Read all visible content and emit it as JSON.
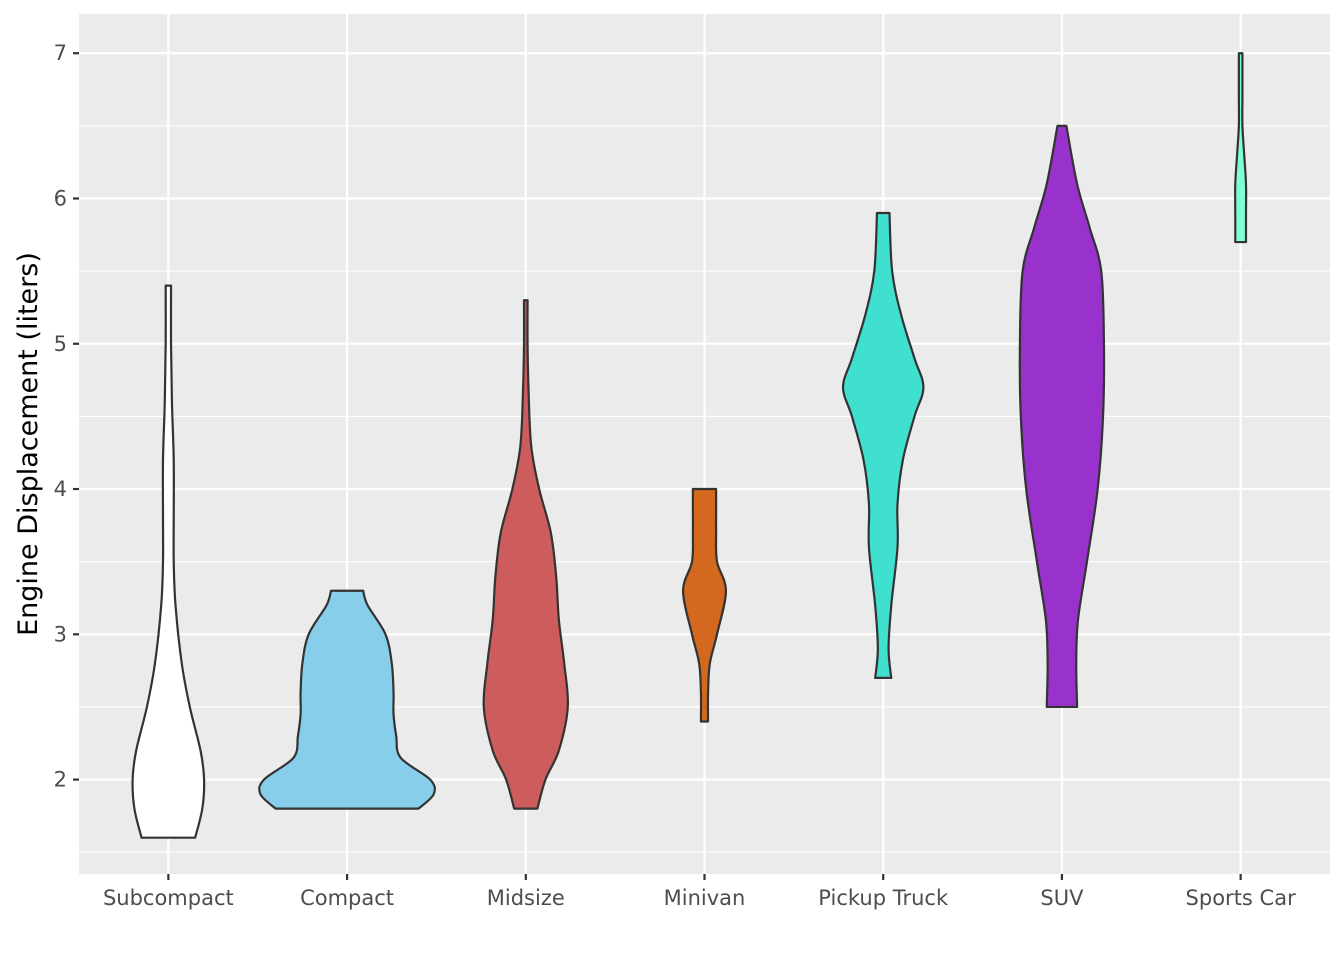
{
  "chart_data": {
    "type": "violin",
    "title": "",
    "xlabel": "",
    "ylabel": "Engine Displacement (liters)",
    "ylim": [
      1.35,
      7.27
    ],
    "yticks": [
      2,
      3,
      4,
      5,
      6,
      7
    ],
    "grid": true,
    "legend": "none",
    "categories": [
      "Subcompact",
      "Compact",
      "Midsize",
      "Minivan",
      "Pickup Truck",
      "SUV",
      "Sports Car"
    ],
    "series": [
      {
        "category": "Subcompact",
        "color": "#ffffff",
        "min": 1.6,
        "max": 5.4,
        "profile": [
          [
            1.6,
            0.3
          ],
          [
            1.8,
            0.38
          ],
          [
            2.0,
            0.4
          ],
          [
            2.2,
            0.36
          ],
          [
            2.5,
            0.24
          ],
          [
            2.8,
            0.15
          ],
          [
            3.2,
            0.08
          ],
          [
            3.5,
            0.06
          ],
          [
            3.8,
            0.06
          ],
          [
            4.2,
            0.06
          ],
          [
            4.6,
            0.04
          ],
          [
            5.0,
            0.03
          ],
          [
            5.4,
            0.03
          ]
        ]
      },
      {
        "category": "Compact",
        "color": "#87ceeb",
        "min": 1.8,
        "max": 3.3,
        "profile": [
          [
            1.8,
            0.8
          ],
          [
            1.9,
            0.97
          ],
          [
            2.0,
            0.93
          ],
          [
            2.15,
            0.6
          ],
          [
            2.3,
            0.55
          ],
          [
            2.45,
            0.52
          ],
          [
            2.6,
            0.52
          ],
          [
            2.8,
            0.5
          ],
          [
            3.0,
            0.43
          ],
          [
            3.2,
            0.23
          ],
          [
            3.3,
            0.18
          ]
        ]
      },
      {
        "category": "Midsize",
        "color": "#cd5c5c",
        "min": 1.8,
        "max": 5.3,
        "profile": [
          [
            1.8,
            0.13
          ],
          [
            2.0,
            0.22
          ],
          [
            2.2,
            0.37
          ],
          [
            2.5,
            0.47
          ],
          [
            2.8,
            0.43
          ],
          [
            3.1,
            0.37
          ],
          [
            3.4,
            0.34
          ],
          [
            3.7,
            0.28
          ],
          [
            4.0,
            0.15
          ],
          [
            4.3,
            0.06
          ],
          [
            4.7,
            0.03
          ],
          [
            5.0,
            0.02
          ],
          [
            5.3,
            0.02
          ]
        ]
      },
      {
        "category": "Minivan",
        "color": "#d2691e",
        "min": 2.4,
        "max": 4.0,
        "profile": [
          [
            2.4,
            0.04
          ],
          [
            2.6,
            0.04
          ],
          [
            2.8,
            0.06
          ],
          [
            3.0,
            0.14
          ],
          [
            3.3,
            0.24
          ],
          [
            3.5,
            0.14
          ],
          [
            3.7,
            0.13
          ],
          [
            3.85,
            0.13
          ],
          [
            4.0,
            0.13
          ]
        ]
      },
      {
        "category": "Pickup Truck",
        "color": "#40e0d0",
        "min": 2.7,
        "max": 5.9,
        "profile": [
          [
            2.7,
            0.09
          ],
          [
            2.9,
            0.06
          ],
          [
            3.2,
            0.09
          ],
          [
            3.6,
            0.16
          ],
          [
            3.9,
            0.16
          ],
          [
            4.2,
            0.22
          ],
          [
            4.5,
            0.35
          ],
          [
            4.7,
            0.45
          ],
          [
            4.9,
            0.35
          ],
          [
            5.2,
            0.2
          ],
          [
            5.5,
            0.1
          ],
          [
            5.9,
            0.07
          ]
        ]
      },
      {
        "category": "SUV",
        "color": "#9932cc",
        "min": 2.5,
        "max": 6.5,
        "profile": [
          [
            2.5,
            0.17
          ],
          [
            2.8,
            0.16
          ],
          [
            3.1,
            0.18
          ],
          [
            3.5,
            0.28
          ],
          [
            4.0,
            0.4
          ],
          [
            4.5,
            0.46
          ],
          [
            5.0,
            0.47
          ],
          [
            5.5,
            0.44
          ],
          [
            5.8,
            0.31
          ],
          [
            6.1,
            0.17
          ],
          [
            6.5,
            0.05
          ]
        ]
      },
      {
        "category": "Sports Car",
        "color": "#7fffd4",
        "min": 5.7,
        "max": 7.0,
        "profile": [
          [
            5.7,
            0.06
          ],
          [
            5.9,
            0.06
          ],
          [
            6.1,
            0.06
          ],
          [
            6.3,
            0.04
          ],
          [
            6.5,
            0.02
          ],
          [
            6.7,
            0.02
          ],
          [
            6.85,
            0.02
          ],
          [
            7.0,
            0.02
          ]
        ]
      }
    ]
  }
}
